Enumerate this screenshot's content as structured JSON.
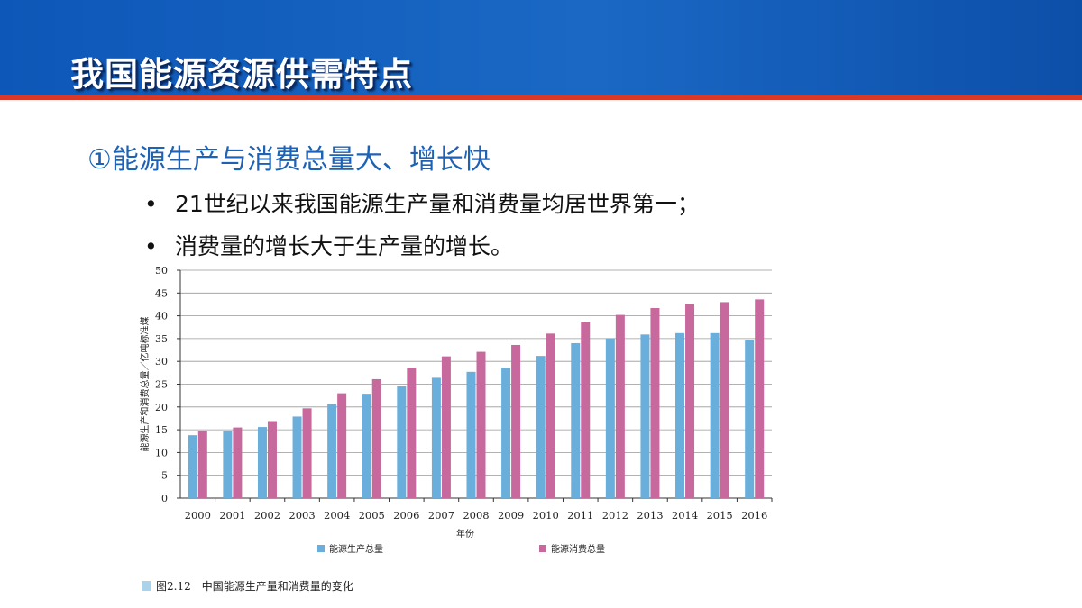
{
  "header": {
    "title": "我国能源资源供需特点"
  },
  "subtitle": "①能源生产与消费总量大、增长快",
  "bullets": [
    "21世纪以来我国能源生产量和消费量均居世界第一；",
    "消费量的增长大于生产量的增长。"
  ],
  "bullet_symbol": "•",
  "colors": {
    "banner": "#1560c0",
    "accent_red": "#d83a2a",
    "subtitle": "#1d62b5",
    "production": "#6aaedb",
    "consumption": "#c8699e"
  },
  "chart_data": {
    "type": "bar",
    "categories": [
      "2000",
      "2001",
      "2002",
      "2003",
      "2004",
      "2005",
      "2006",
      "2007",
      "2008",
      "2009",
      "2010",
      "2011",
      "2012",
      "2013",
      "2014",
      "2015",
      "2016"
    ],
    "series": [
      {
        "name": "能源生产总量",
        "color": "#6aaedb",
        "values": [
          13.8,
          14.7,
          15.6,
          17.9,
          20.6,
          22.9,
          24.5,
          26.4,
          27.7,
          28.6,
          31.2,
          34.0,
          35.1,
          35.9,
          36.2,
          36.2,
          34.6
        ]
      },
      {
        "name": "能源消费总量",
        "color": "#c8699e",
        "values": [
          14.7,
          15.5,
          16.9,
          19.7,
          23.0,
          26.1,
          28.6,
          31.1,
          32.1,
          33.6,
          36.1,
          38.7,
          40.2,
          41.7,
          42.6,
          43.0,
          43.6
        ]
      }
    ],
    "xlabel": "年份",
    "ylabel": "能源生产和消费总量／亿吨标准煤",
    "ylim": [
      0,
      50
    ],
    "yticks": [
      0,
      5,
      10,
      15,
      20,
      25,
      30,
      35,
      40,
      45,
      50
    ],
    "grid": true,
    "legend_position": "bottom",
    "caption": "图2.12　中国能源生产量和消费量的变化"
  }
}
